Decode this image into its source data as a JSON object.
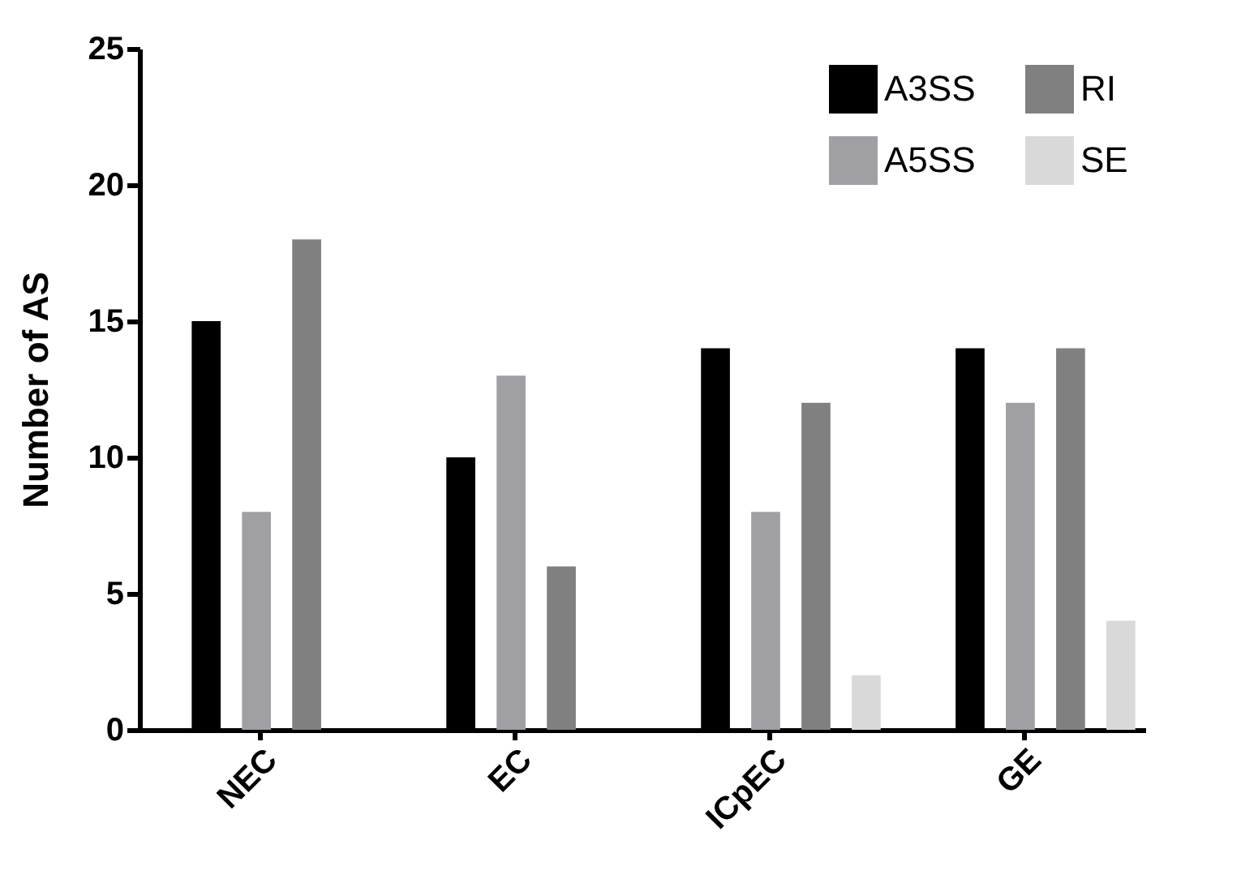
{
  "chart_data": {
    "type": "bar",
    "ylabel": "Number of AS",
    "categories": [
      "NEC",
      "EC",
      "ICpEC",
      "GE"
    ],
    "series": [
      {
        "name": "A3SS",
        "color": "#000000",
        "values": [
          15,
          10,
          14,
          14
        ]
      },
      {
        "name": "A5SS",
        "color": "#a0a0a4",
        "values": [
          8,
          13,
          8,
          12
        ]
      },
      {
        "name": "RI",
        "color": "#808080",
        "values": [
          18,
          6,
          12,
          14
        ]
      },
      {
        "name": "SE",
        "color": "#d9d9d9",
        "values": [
          0,
          0,
          2,
          4
        ]
      }
    ],
    "ylim": [
      0,
      25
    ],
    "yticks": [
      0,
      5,
      10,
      15,
      20,
      25
    ],
    "grid": false,
    "legend": "top right"
  }
}
